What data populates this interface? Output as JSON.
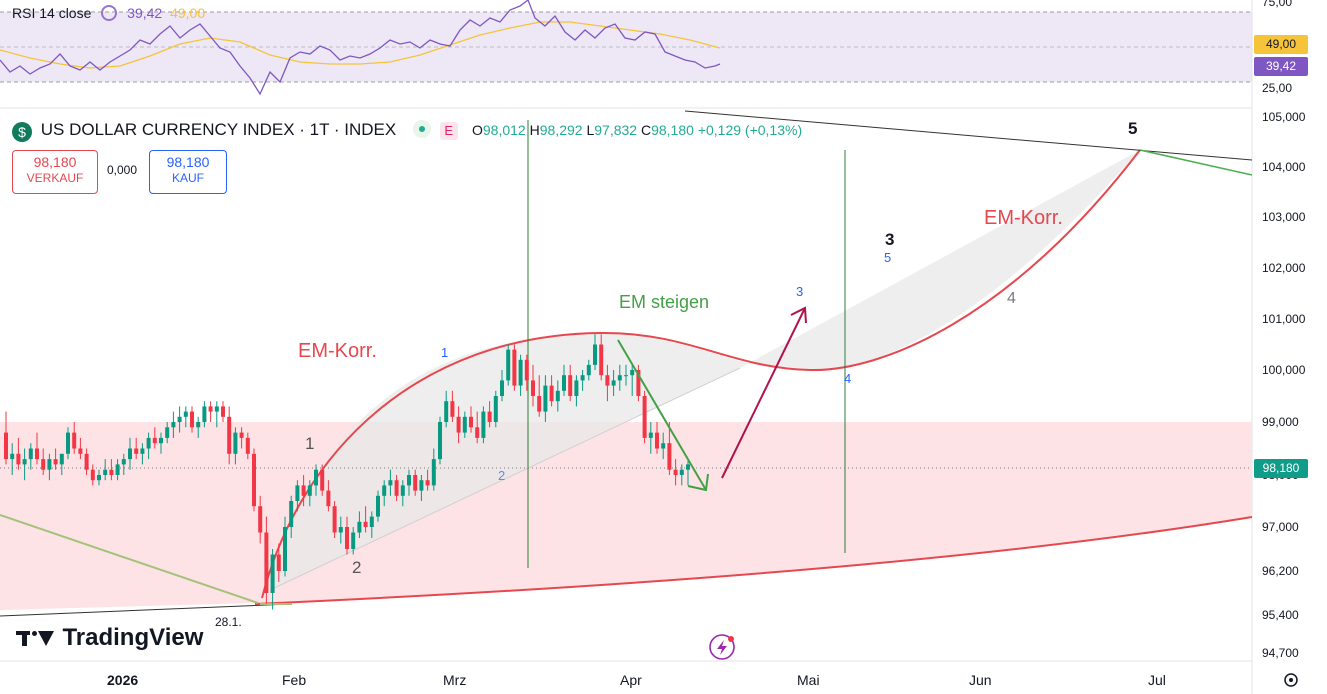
{
  "rsi": {
    "label": "RSI 14 close",
    "value": "39,42",
    "ma_value": "49,00",
    "ticks": [
      "75,00",
      "25,00"
    ],
    "tag_ma": "49,00",
    "tag_rsi": "39,42",
    "colors": {
      "rsi": "#7e57c2",
      "ma": "#f5c43b",
      "band": "#ede7f6"
    }
  },
  "header": {
    "symbol_icon": "dollar-icon",
    "title": "US DOLLAR CURRENCY INDEX · 1T · INDEX",
    "badge": "E",
    "open_label": "O",
    "open": "98,012",
    "high_label": "H",
    "high": "98,292",
    "low_label": "L",
    "low": "97,832",
    "close_label": "C",
    "close": "98,180",
    "change": "+0,129 (+0,13%)"
  },
  "trade": {
    "sell_price": "98,180",
    "sell_label": "VERKAUF",
    "spread": "0,000",
    "buy_price": "98,180",
    "buy_label": "KAUF"
  },
  "current_price_tag": "98,180",
  "brand": "TradingView",
  "date_marker": "28.1.",
  "annotations": {
    "em_korr_left": "EM-Korr.",
    "em_korr_right": "EM-Korr.",
    "em_steigen": "EM steigen",
    "wave_1_left": "1",
    "wave_2_left": "2",
    "wave_1_blue": "1",
    "wave_2_blue": "2",
    "wave_3_blue": "3",
    "wave_3_black": "3",
    "wave_5_blue": "5",
    "wave_4_blue": "4",
    "wave_4_gray": "4",
    "wave_5_black": "5"
  },
  "chart_data": {
    "type": "candlestick",
    "title": "US DOLLAR CURRENCY INDEX · 1T · INDEX",
    "y_ticks": [
      "105,000",
      "104,000",
      "103,000",
      "102,000",
      "101,000",
      "100,000",
      "99,000",
      "98,000",
      "97,000",
      "96,200",
      "95,400",
      "94,700"
    ],
    "x_ticks": [
      "2026",
      "Feb",
      "Mrz",
      "Apr",
      "Mai",
      "Jun",
      "Jul"
    ],
    "ylim": [
      94.6,
      105.2
    ],
    "candles": [
      [
        98.8,
        99.2,
        98.2,
        98.3
      ],
      [
        98.3,
        98.6,
        98.0,
        98.4
      ],
      [
        98.4,
        98.7,
        98.1,
        98.2
      ],
      [
        98.2,
        98.5,
        97.9,
        98.3
      ],
      [
        98.3,
        98.6,
        98.1,
        98.5
      ],
      [
        98.5,
        98.8,
        98.2,
        98.3
      ],
      [
        98.3,
        98.5,
        98.0,
        98.1
      ],
      [
        98.1,
        98.4,
        97.9,
        98.3
      ],
      [
        98.3,
        98.5,
        98.1,
        98.2
      ],
      [
        98.2,
        98.4,
        98.0,
        98.4
      ],
      [
        98.4,
        98.9,
        98.3,
        98.8
      ],
      [
        98.8,
        99.0,
        98.4,
        98.5
      ],
      [
        98.5,
        98.7,
        98.3,
        98.4
      ],
      [
        98.4,
        98.5,
        98.0,
        98.1
      ],
      [
        98.1,
        98.2,
        97.8,
        97.9
      ],
      [
        97.9,
        98.1,
        97.8,
        98.0
      ],
      [
        98.0,
        98.3,
        97.9,
        98.1
      ],
      [
        98.1,
        98.3,
        97.9,
        98.0
      ],
      [
        98.0,
        98.3,
        97.9,
        98.2
      ],
      [
        98.2,
        98.4,
        98.0,
        98.3
      ],
      [
        98.3,
        98.7,
        98.1,
        98.5
      ],
      [
        98.5,
        98.7,
        98.3,
        98.4
      ],
      [
        98.4,
        98.6,
        98.2,
        98.5
      ],
      [
        98.5,
        98.8,
        98.3,
        98.7
      ],
      [
        98.7,
        98.9,
        98.5,
        98.6
      ],
      [
        98.6,
        98.8,
        98.4,
        98.7
      ],
      [
        98.7,
        99.0,
        98.6,
        98.9
      ],
      [
        98.9,
        99.2,
        98.7,
        99.0
      ],
      [
        99.0,
        99.3,
        98.8,
        99.1
      ],
      [
        99.1,
        99.3,
        98.9,
        99.2
      ],
      [
        99.2,
        99.3,
        98.8,
        98.9
      ],
      [
        98.9,
        99.1,
        98.7,
        99.0
      ],
      [
        99.0,
        99.4,
        98.9,
        99.3
      ],
      [
        99.3,
        99.4,
        99.0,
        99.2
      ],
      [
        99.2,
        99.4,
        98.9,
        99.3
      ],
      [
        99.3,
        99.4,
        99.0,
        99.1
      ],
      [
        99.1,
        99.3,
        98.2,
        98.4
      ],
      [
        98.4,
        98.9,
        98.2,
        98.8
      ],
      [
        98.8,
        98.9,
        98.5,
        98.7
      ],
      [
        98.7,
        98.8,
        98.3,
        98.4
      ],
      [
        98.4,
        98.5,
        97.3,
        97.4
      ],
      [
        97.4,
        97.6,
        96.7,
        96.9
      ],
      [
        96.9,
        97.2,
        95.6,
        95.8
      ],
      [
        95.8,
        96.6,
        95.5,
        96.5
      ],
      [
        96.5,
        96.7,
        96.0,
        96.2
      ],
      [
        96.2,
        97.2,
        96.1,
        97.0
      ],
      [
        97.0,
        97.6,
        96.8,
        97.5
      ],
      [
        97.5,
        97.9,
        97.3,
        97.8
      ],
      [
        97.8,
        98.0,
        97.4,
        97.6
      ],
      [
        97.6,
        97.9,
        97.4,
        97.8
      ],
      [
        97.8,
        98.2,
        97.6,
        98.1
      ],
      [
        98.1,
        98.2,
        97.6,
        97.7
      ],
      [
        97.7,
        97.9,
        97.3,
        97.4
      ],
      [
        97.4,
        97.5,
        96.8,
        96.9
      ],
      [
        96.9,
        97.2,
        96.7,
        97.0
      ],
      [
        97.0,
        97.2,
        96.5,
        96.6
      ],
      [
        96.6,
        97.0,
        96.5,
        96.9
      ],
      [
        96.9,
        97.3,
        96.8,
        97.1
      ],
      [
        97.1,
        97.4,
        96.9,
        97.0
      ],
      [
        97.0,
        97.3,
        96.8,
        97.2
      ],
      [
        97.2,
        97.7,
        97.1,
        97.6
      ],
      [
        97.6,
        97.9,
        97.4,
        97.8
      ],
      [
        97.8,
        98.1,
        97.6,
        97.9
      ],
      [
        97.9,
        98.0,
        97.5,
        97.6
      ],
      [
        97.6,
        97.9,
        97.4,
        97.8
      ],
      [
        97.8,
        98.1,
        97.6,
        98.0
      ],
      [
        98.0,
        98.1,
        97.6,
        97.7
      ],
      [
        97.7,
        98.0,
        97.5,
        97.9
      ],
      [
        97.9,
        98.1,
        97.7,
        97.8
      ],
      [
        97.8,
        98.5,
        97.7,
        98.3
      ],
      [
        98.3,
        99.1,
        98.2,
        99.0
      ],
      [
        99.0,
        99.6,
        98.9,
        99.4
      ],
      [
        99.4,
        99.6,
        99.0,
        99.1
      ],
      [
        99.1,
        99.3,
        98.6,
        98.8
      ],
      [
        98.8,
        99.2,
        98.7,
        99.1
      ],
      [
        99.1,
        99.3,
        98.8,
        98.9
      ],
      [
        98.9,
        99.2,
        98.6,
        98.7
      ],
      [
        98.7,
        99.3,
        98.6,
        99.2
      ],
      [
        99.2,
        99.4,
        98.9,
        99.0
      ],
      [
        99.0,
        99.6,
        98.9,
        99.5
      ],
      [
        99.5,
        100.0,
        99.4,
        99.8
      ],
      [
        99.8,
        100.5,
        99.7,
        100.4
      ],
      [
        100.4,
        100.5,
        99.6,
        99.7
      ],
      [
        99.7,
        100.3,
        99.5,
        100.2
      ],
      [
        100.2,
        100.3,
        99.6,
        99.8
      ],
      [
        99.8,
        100.1,
        99.3,
        99.5
      ],
      [
        99.5,
        99.9,
        99.1,
        99.2
      ],
      [
        99.2,
        99.9,
        99.0,
        99.7
      ],
      [
        99.7,
        99.9,
        99.3,
        99.4
      ],
      [
        99.4,
        99.8,
        99.2,
        99.6
      ],
      [
        99.6,
        100.1,
        99.5,
        99.9
      ],
      [
        99.9,
        100.1,
        99.4,
        99.5
      ],
      [
        99.5,
        99.9,
        99.3,
        99.8
      ],
      [
        99.8,
        100.0,
        99.6,
        99.9
      ],
      [
        99.9,
        100.2,
        99.8,
        100.1
      ],
      [
        100.1,
        100.7,
        100.0,
        100.5
      ],
      [
        100.5,
        100.7,
        99.8,
        99.9
      ],
      [
        99.9,
        100.1,
        99.4,
        99.7
      ],
      [
        99.7,
        100.0,
        99.5,
        99.8
      ],
      [
        99.8,
        100.1,
        99.6,
        99.9
      ],
      [
        99.9,
        100.1,
        99.7,
        99.9
      ],
      [
        99.9,
        100.1,
        99.5,
        100.0
      ],
      [
        100.0,
        100.1,
        99.4,
        99.5
      ],
      [
        99.5,
        99.6,
        98.6,
        98.7
      ],
      [
        98.7,
        99.0,
        98.4,
        98.8
      ],
      [
        98.8,
        99.0,
        98.4,
        98.5
      ],
      [
        98.5,
        98.8,
        98.3,
        98.6
      ],
      [
        98.6,
        99.0,
        98.0,
        98.1
      ],
      [
        98.1,
        98.3,
        97.8,
        98.0
      ],
      [
        98.0,
        98.2,
        97.8,
        98.1
      ],
      [
        98.1,
        98.3,
        97.8,
        98.2
      ]
    ]
  }
}
